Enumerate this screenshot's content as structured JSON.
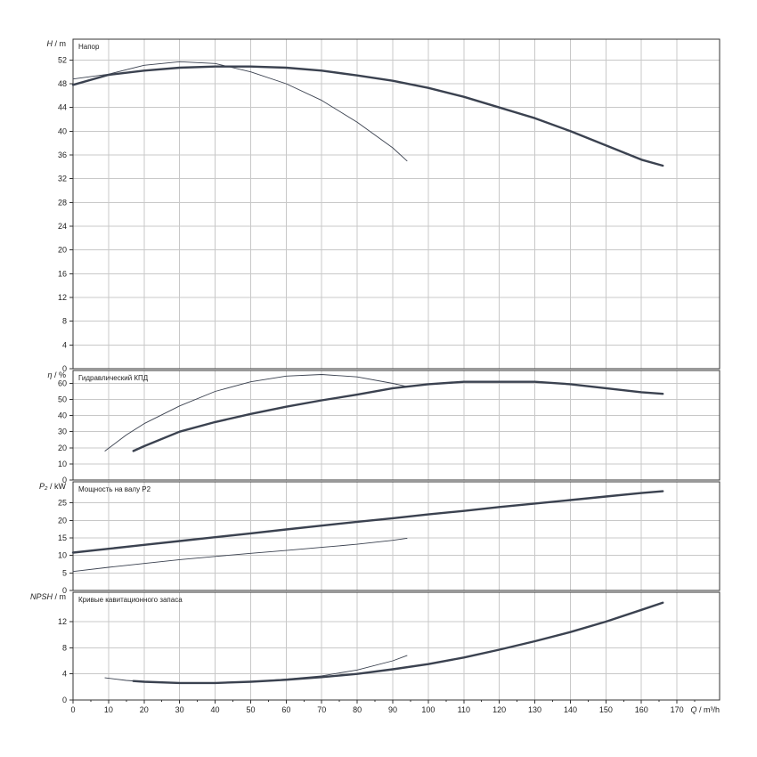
{
  "chart_data": [
    {
      "id": "head",
      "type": "line",
      "title": "Напор",
      "ylabel_symbol": "H",
      "ylabel_unit": "m",
      "ylim": [
        0,
        55.5
      ],
      "yticks": [
        0,
        4,
        8,
        12,
        16,
        20,
        24,
        28,
        32,
        36,
        40,
        44,
        48,
        52
      ],
      "series": [
        {
          "style": "thick",
          "points": [
            [
              0,
              47.8
            ],
            [
              10,
              49.5
            ],
            [
              20,
              50.2
            ],
            [
              30,
              50.7
            ],
            [
              40,
              50.9
            ],
            [
              50,
              50.9
            ],
            [
              60,
              50.7
            ],
            [
              70,
              50.2
            ],
            [
              80,
              49.4
            ],
            [
              90,
              48.5
            ],
            [
              100,
              47.3
            ],
            [
              110,
              45.8
            ],
            [
              120,
              44.0
            ],
            [
              130,
              42.2
            ],
            [
              140,
              40.0
            ],
            [
              150,
              37.6
            ],
            [
              160,
              35.2
            ],
            [
              166,
              34.2
            ]
          ]
        },
        {
          "style": "thin",
          "points": [
            [
              0,
              48.8
            ],
            [
              10,
              49.6
            ],
            [
              20,
              51.1
            ],
            [
              30,
              51.7
            ],
            [
              40,
              51.4
            ],
            [
              50,
              50.0
            ],
            [
              60,
              48.0
            ],
            [
              70,
              45.2
            ],
            [
              80,
              41.5
            ],
            [
              90,
              37.2
            ],
            [
              94,
              35.0
            ]
          ]
        }
      ]
    },
    {
      "id": "efficiency",
      "type": "line",
      "title": "Гидравлический КПД",
      "ylabel_symbol": "η",
      "ylabel_unit": "%",
      "ylim": [
        0,
        68
      ],
      "yticks": [
        0,
        10,
        20,
        30,
        40,
        50,
        60
      ],
      "series": [
        {
          "style": "thick",
          "points": [
            [
              17,
              18
            ],
            [
              20,
              21
            ],
            [
              30,
              30
            ],
            [
              40,
              36
            ],
            [
              50,
              41
            ],
            [
              60,
              45.5
            ],
            [
              70,
              49.5
            ],
            [
              80,
              53
            ],
            [
              90,
              57
            ],
            [
              100,
              59.5
            ],
            [
              110,
              61
            ],
            [
              120,
              61
            ],
            [
              130,
              61
            ],
            [
              140,
              59.5
            ],
            [
              150,
              57
            ],
            [
              160,
              54.5
            ],
            [
              166,
              53.5
            ]
          ]
        },
        {
          "style": "thin",
          "points": [
            [
              9,
              18
            ],
            [
              15,
              28
            ],
            [
              20,
              35
            ],
            [
              30,
              46
            ],
            [
              40,
              55
            ],
            [
              50,
              61
            ],
            [
              60,
              64.5
            ],
            [
              70,
              65.5
            ],
            [
              80,
              64
            ],
            [
              90,
              60
            ],
            [
              94,
              58
            ]
          ]
        }
      ]
    },
    {
      "id": "power",
      "type": "line",
      "title": "Мощность на валу P2",
      "ylabel_symbol": "P₂",
      "ylabel_unit": "kW",
      "ylim": [
        0,
        31
      ],
      "yticks": [
        0,
        5,
        10,
        15,
        20,
        25
      ],
      "series": [
        {
          "style": "thick",
          "points": [
            [
              0,
              10.8
            ],
            [
              10,
              11.9
            ],
            [
              20,
              13.0
            ],
            [
              30,
              14.1
            ],
            [
              40,
              15.2
            ],
            [
              50,
              16.3
            ],
            [
              60,
              17.4
            ],
            [
              70,
              18.5
            ],
            [
              80,
              19.6
            ],
            [
              90,
              20.6
            ],
            [
              100,
              21.7
            ],
            [
              110,
              22.7
            ],
            [
              120,
              23.8
            ],
            [
              130,
              24.8
            ],
            [
              140,
              25.8
            ],
            [
              150,
              26.8
            ],
            [
              160,
              27.8
            ],
            [
              166,
              28.3
            ]
          ]
        },
        {
          "style": "thin",
          "points": [
            [
              0,
              5.4
            ],
            [
              10,
              6.6
            ],
            [
              20,
              7.7
            ],
            [
              30,
              8.8
            ],
            [
              40,
              9.7
            ],
            [
              50,
              10.6
            ],
            [
              60,
              11.4
            ],
            [
              70,
              12.3
            ],
            [
              80,
              13.2
            ],
            [
              90,
              14.3
            ],
            [
              94,
              14.9
            ]
          ]
        }
      ]
    },
    {
      "id": "npsh",
      "type": "line",
      "title": "Кривые кавитационного запаса",
      "ylabel_symbol": "NPSH",
      "ylabel_unit": "m",
      "ylim": [
        0,
        16.5
      ],
      "yticks": [
        0,
        4,
        8,
        12
      ],
      "xlabel_symbol": "Q",
      "xlabel_unit": "m³/h",
      "xlim": [
        0,
        182
      ],
      "xticks": [
        0,
        10,
        20,
        30,
        40,
        50,
        60,
        70,
        80,
        90,
        100,
        110,
        120,
        130,
        140,
        150,
        160,
        170
      ],
      "series": [
        {
          "style": "thick",
          "points": [
            [
              17,
              2.9
            ],
            [
              20,
              2.8
            ],
            [
              30,
              2.6
            ],
            [
              40,
              2.6
            ],
            [
              50,
              2.8
            ],
            [
              60,
              3.1
            ],
            [
              70,
              3.5
            ],
            [
              80,
              4.0
            ],
            [
              90,
              4.7
            ],
            [
              100,
              5.5
            ],
            [
              110,
              6.5
            ],
            [
              120,
              7.7
            ],
            [
              130,
              9.0
            ],
            [
              140,
              10.4
            ],
            [
              150,
              12.0
            ],
            [
              160,
              13.8
            ],
            [
              166,
              14.9
            ]
          ]
        },
        {
          "style": "thin",
          "points": [
            [
              9,
              3.4
            ],
            [
              15,
              3.0
            ],
            [
              20,
              2.8
            ],
            [
              30,
              2.6
            ],
            [
              40,
              2.6
            ],
            [
              50,
              2.8
            ],
            [
              60,
              3.2
            ],
            [
              70,
              3.7
            ],
            [
              80,
              4.6
            ],
            [
              90,
              6.0
            ],
            [
              94,
              6.8
            ]
          ]
        }
      ]
    }
  ]
}
